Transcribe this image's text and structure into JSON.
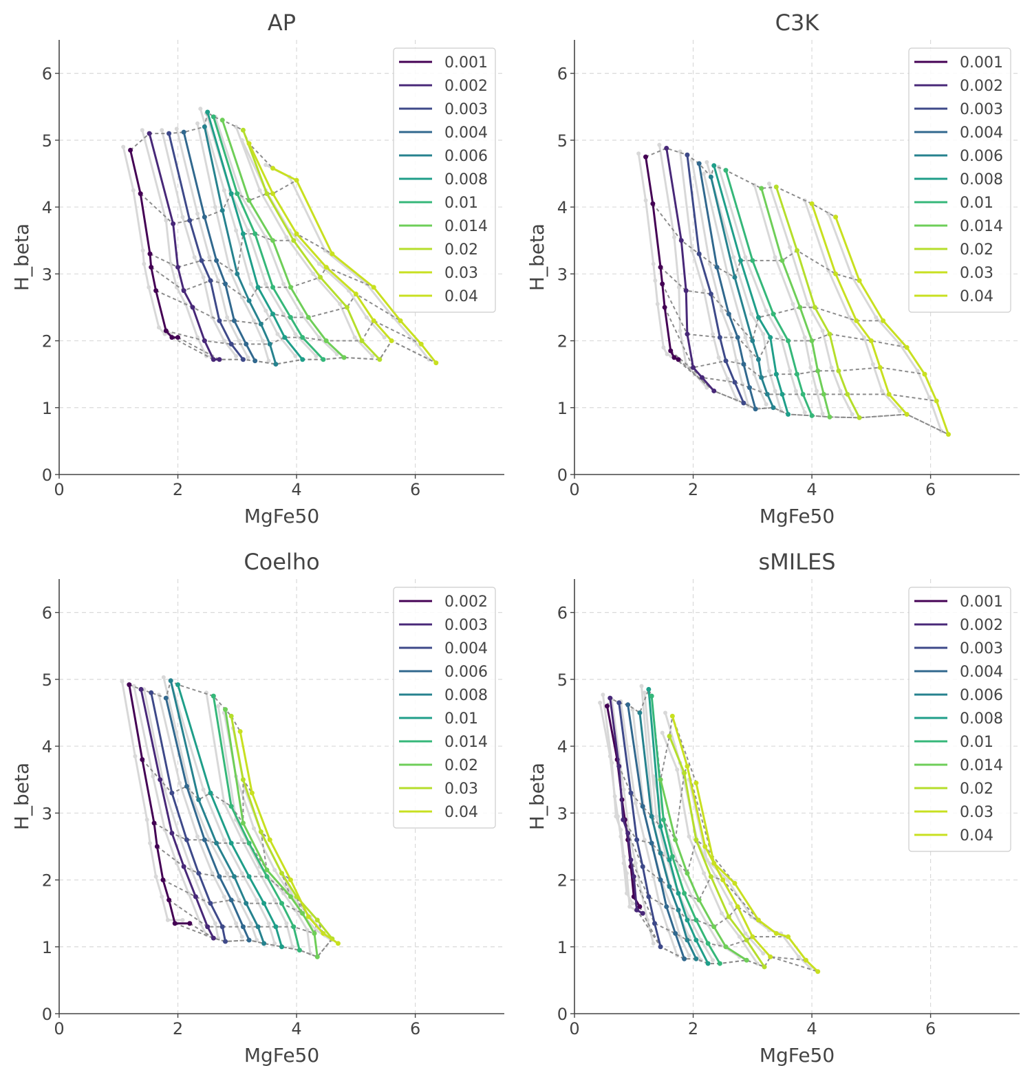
{
  "colors": {
    "axis": "#444444",
    "grid": "#d9d9d9",
    "ghost": "#d8d8d8",
    "iso": "#8c8c8c",
    "palette": [
      "#440154",
      "#482878",
      "#3e4989",
      "#31688e",
      "#26828e",
      "#1f9e89",
      "#35b779",
      "#6ece58",
      "#b5de2b",
      "#c8e020"
    ]
  },
  "chart_data": [
    {
      "type": "line",
      "title": "AP",
      "xlabel": "MgFe50",
      "ylabel": "H_beta",
      "xlim": [
        0,
        7.5
      ],
      "ylim": [
        0,
        6.5
      ],
      "xticks": [
        "0",
        "2",
        "4",
        "6"
      ],
      "yticks": [
        "0",
        "1",
        "2",
        "3",
        "4",
        "5",
        "6"
      ],
      "grid": true,
      "legend_position": "top-right",
      "series": [
        {
          "name": "0.001",
          "x": [
            1.2,
            1.37,
            1.53,
            1.55,
            1.63,
            1.8,
            1.9,
            2.0
          ],
          "y": [
            4.85,
            4.2,
            3.3,
            3.1,
            2.75,
            2.15,
            2.05,
            2.05
          ]
        },
        {
          "name": "0.002",
          "x": [
            1.52,
            1.92,
            2.0,
            2.1,
            2.25,
            2.45,
            2.6,
            2.7
          ],
          "y": [
            5.1,
            3.75,
            3.1,
            2.75,
            2.5,
            2.0,
            1.72,
            1.72
          ]
        },
        {
          "name": "0.003",
          "x": [
            1.85,
            2.2,
            2.4,
            2.55,
            2.7,
            2.9,
            3.1
          ],
          "y": [
            5.1,
            3.8,
            3.2,
            2.9,
            2.3,
            1.95,
            1.72
          ]
        },
        {
          "name": "0.004",
          "x": [
            2.1,
            2.45,
            2.65,
            2.8,
            2.95,
            3.15,
            3.3
          ],
          "y": [
            5.12,
            3.85,
            3.2,
            2.85,
            2.3,
            1.95,
            1.7
          ]
        },
        {
          "name": "0.006",
          "x": [
            2.45,
            2.75,
            3.0,
            3.2,
            3.4,
            3.55,
            3.65
          ],
          "y": [
            5.2,
            3.95,
            3.0,
            2.6,
            2.25,
            1.95,
            1.65
          ]
        },
        {
          "name": "0.008",
          "x": [
            2.5,
            2.9,
            3.1,
            3.35,
            3.6,
            3.8,
            4.1
          ],
          "y": [
            5.42,
            4.2,
            3.6,
            2.8,
            2.4,
            2.05,
            1.72
          ]
        },
        {
          "name": "0.01",
          "x": [
            2.6,
            3.0,
            3.3,
            3.6,
            3.9,
            4.1,
            4.45
          ],
          "y": [
            5.35,
            4.2,
            3.6,
            2.8,
            2.35,
            2.05,
            1.72
          ]
        },
        {
          "name": "0.014",
          "x": [
            2.75,
            3.2,
            3.6,
            3.9,
            4.2,
            4.5,
            4.8
          ],
          "y": [
            5.3,
            4.1,
            3.5,
            2.8,
            2.35,
            2.0,
            1.75
          ]
        },
        {
          "name": "0.02",
          "x": [
            3.1,
            3.5,
            3.95,
            4.4,
            4.85,
            5.1,
            5.4
          ],
          "y": [
            5.15,
            4.2,
            3.5,
            2.95,
            2.5,
            2.0,
            1.72
          ]
        },
        {
          "name": "0.03",
          "x": [
            3.2,
            3.6,
            4.0,
            4.5,
            5.0,
            5.3,
            5.6
          ],
          "y": [
            4.95,
            4.2,
            3.6,
            3.1,
            2.7,
            2.3,
            2.0
          ]
        },
        {
          "name": "0.04",
          "x": [
            3.6,
            4.0,
            4.6,
            5.3,
            5.75,
            6.1,
            6.35
          ],
          "y": [
            4.58,
            4.4,
            3.3,
            2.8,
            2.3,
            1.95,
            1.67
          ]
        }
      ]
    },
    {
      "type": "line",
      "title": "C3K",
      "xlabel": "MgFe50",
      "ylabel": "H_beta",
      "xlim": [
        0,
        7.5
      ],
      "ylim": [
        0,
        6.5
      ],
      "xticks": [
        "0",
        "2",
        "4",
        "6"
      ],
      "yticks": [
        "0",
        "1",
        "2",
        "3",
        "4",
        "5",
        "6"
      ],
      "grid": true,
      "legend_position": "top-right",
      "series": [
        {
          "name": "0.001",
          "x": [
            1.2,
            1.32,
            1.45,
            1.48,
            1.52,
            1.62,
            1.68,
            1.75
          ],
          "y": [
            4.75,
            4.05,
            3.1,
            2.85,
            2.5,
            1.85,
            1.75,
            1.72
          ]
        },
        {
          "name": "0.002",
          "x": [
            1.55,
            1.8,
            1.88,
            1.9,
            2.0,
            2.15,
            2.35
          ],
          "y": [
            4.88,
            3.5,
            2.75,
            2.1,
            1.6,
            1.45,
            1.25
          ]
        },
        {
          "name": "0.003",
          "x": [
            1.9,
            2.1,
            2.3,
            2.45,
            2.55,
            2.7,
            2.85
          ],
          "y": [
            4.78,
            3.3,
            2.7,
            2.05,
            1.7,
            1.38,
            1.07
          ]
        },
        {
          "name": "0.004",
          "x": [
            2.1,
            2.4,
            2.6,
            2.75,
            2.85,
            2.95,
            3.05
          ],
          "y": [
            4.65,
            3.1,
            2.4,
            2.05,
            1.65,
            1.3,
            0.98
          ]
        },
        {
          "name": "0.006",
          "x": [
            2.3,
            2.7,
            3.0,
            3.1,
            3.15,
            3.25,
            3.35
          ],
          "y": [
            4.45,
            2.95,
            2.0,
            1.72,
            1.45,
            1.2,
            1.0
          ]
        },
        {
          "name": "0.008",
          "x": [
            2.35,
            2.8,
            3.1,
            3.3,
            3.4,
            3.5,
            3.6
          ],
          "y": [
            4.62,
            3.2,
            2.35,
            2.05,
            1.5,
            1.2,
            0.9
          ]
        },
        {
          "name": "0.01",
          "x": [
            2.55,
            3.0,
            3.35,
            3.6,
            3.75,
            3.85,
            4.0
          ],
          "y": [
            4.55,
            3.2,
            2.4,
            2.0,
            1.5,
            1.2,
            0.88
          ]
        },
        {
          "name": "0.014",
          "x": [
            3.15,
            3.5,
            3.8,
            4.0,
            4.1,
            4.2,
            4.3
          ],
          "y": [
            4.28,
            3.2,
            2.5,
            2.0,
            1.55,
            1.2,
            0.86
          ]
        },
        {
          "name": "0.02",
          "x": [
            3.4,
            3.75,
            4.05,
            4.3,
            4.45,
            4.6,
            4.8
          ],
          "y": [
            4.3,
            3.35,
            2.5,
            2.1,
            1.55,
            1.2,
            0.85
          ]
        },
        {
          "name": "0.03",
          "x": [
            4.0,
            4.4,
            4.75,
            5.0,
            5.15,
            5.3,
            5.6
          ],
          "y": [
            4.05,
            3.0,
            2.3,
            2.0,
            1.6,
            1.2,
            0.9
          ]
        },
        {
          "name": "0.04",
          "x": [
            4.4,
            4.8,
            5.2,
            5.6,
            5.9,
            6.1,
            6.3
          ],
          "y": [
            3.85,
            2.9,
            2.3,
            1.9,
            1.5,
            1.1,
            0.6
          ]
        }
      ]
    },
    {
      "type": "line",
      "title": "Coelho",
      "xlabel": "MgFe50",
      "ylabel": "H_beta",
      "xlim": [
        0,
        7.5
      ],
      "ylim": [
        0,
        6.5
      ],
      "xticks": [
        "0",
        "2",
        "4",
        "6"
      ],
      "yticks": [
        "0",
        "1",
        "2",
        "3",
        "4",
        "5",
        "6"
      ],
      "grid": true,
      "legend_position": "top-right",
      "series": [
        {
          "name": "0.002",
          "x": [
            1.18,
            1.4,
            1.6,
            1.65,
            1.75,
            1.85,
            1.95,
            2.2
          ],
          "y": [
            4.92,
            3.8,
            2.85,
            2.5,
            2.0,
            1.7,
            1.35,
            1.35
          ]
        },
        {
          "name": "0.003",
          "x": [
            1.38,
            1.7,
            1.9,
            2.1,
            2.3,
            2.5,
            2.6
          ],
          "y": [
            4.85,
            3.5,
            2.7,
            2.2,
            1.75,
            1.3,
            1.13
          ]
        },
        {
          "name": "0.004",
          "x": [
            1.55,
            1.9,
            2.15,
            2.35,
            2.55,
            2.75,
            2.8
          ],
          "y": [
            4.8,
            3.3,
            2.6,
            2.1,
            1.65,
            1.3,
            1.08
          ]
        },
        {
          "name": "0.006",
          "x": [
            1.8,
            2.15,
            2.45,
            2.7,
            2.9,
            3.1,
            3.2
          ],
          "y": [
            4.72,
            3.4,
            2.6,
            2.05,
            1.7,
            1.3,
            1.1
          ]
        },
        {
          "name": "0.008",
          "x": [
            1.88,
            2.35,
            2.65,
            2.95,
            3.15,
            3.35,
            3.45
          ],
          "y": [
            4.98,
            3.2,
            2.55,
            2.05,
            1.65,
            1.3,
            1.05
          ]
        },
        {
          "name": "0.01",
          "x": [
            2.0,
            2.55,
            2.9,
            3.2,
            3.45,
            3.65,
            3.75
          ],
          "y": [
            4.92,
            3.3,
            2.55,
            2.05,
            1.65,
            1.3,
            1.0
          ]
        },
        {
          "name": "0.014",
          "x": [
            2.6,
            2.9,
            3.2,
            3.5,
            3.75,
            3.95,
            4.05
          ],
          "y": [
            4.75,
            3.1,
            2.55,
            2.05,
            1.65,
            1.3,
            0.95
          ]
        },
        {
          "name": "0.02",
          "x": [
            2.8,
            3.1,
            3.5,
            3.9,
            4.1,
            4.3,
            4.35
          ],
          "y": [
            4.55,
            2.85,
            2.15,
            1.75,
            1.5,
            1.2,
            0.85
          ]
        },
        {
          "name": "0.03",
          "x": [
            2.9,
            3.1,
            3.4,
            3.75,
            4.0,
            4.35,
            4.6
          ],
          "y": [
            4.45,
            3.5,
            2.72,
            2.1,
            1.75,
            1.4,
            1.12
          ]
        },
        {
          "name": "0.04",
          "x": [
            3.05,
            3.25,
            3.55,
            3.9,
            4.2,
            4.45,
            4.7
          ],
          "y": [
            4.22,
            3.3,
            2.6,
            2.0,
            1.45,
            1.2,
            1.05
          ]
        }
      ]
    },
    {
      "type": "line",
      "title": "sMILES",
      "xlabel": "MgFe50",
      "ylabel": "H_beta",
      "xlim": [
        0,
        7.5
      ],
      "ylim": [
        0,
        6.5
      ],
      "xticks": [
        "0",
        "2",
        "4",
        "6"
      ],
      "yticks": [
        "0",
        "1",
        "2",
        "3",
        "4",
        "5",
        "6"
      ],
      "grid": true,
      "legend_position": "top-right",
      "series": [
        {
          "name": "0.001",
          "x": [
            0.55,
            0.72,
            0.8,
            0.85,
            0.9,
            0.95,
            1.0,
            1.1
          ],
          "y": [
            4.6,
            3.8,
            3.2,
            2.9,
            2.6,
            2.2,
            1.75,
            1.6
          ]
        },
        {
          "name": "0.002",
          "x": [
            0.6,
            0.75,
            0.82,
            0.9,
            0.95,
            1.0,
            1.05,
            1.15
          ],
          "y": [
            4.72,
            3.7,
            2.9,
            2.7,
            2.3,
            2.05,
            1.55,
            1.5
          ]
        },
        {
          "name": "0.003",
          "x": [
            0.75,
            0.95,
            1.05,
            1.15,
            1.25,
            1.35,
            1.45
          ],
          "y": [
            4.65,
            3.3,
            2.6,
            2.2,
            1.75,
            1.35,
            1.0
          ]
        },
        {
          "name": "0.004",
          "x": [
            0.9,
            1.15,
            1.3,
            1.45,
            1.55,
            1.7,
            1.85
          ],
          "y": [
            4.62,
            3.1,
            2.55,
            2.0,
            1.6,
            1.2,
            0.82
          ]
        },
        {
          "name": "0.006",
          "x": [
            1.1,
            1.3,
            1.45,
            1.6,
            1.75,
            1.9,
            2.05
          ],
          "y": [
            4.5,
            2.95,
            2.4,
            1.9,
            1.55,
            1.1,
            0.82
          ]
        },
        {
          "name": "0.008",
          "x": [
            1.25,
            1.45,
            1.6,
            1.75,
            1.9,
            2.05,
            2.25
          ],
          "y": [
            4.85,
            2.8,
            2.3,
            1.8,
            1.4,
            1.1,
            0.75
          ]
        },
        {
          "name": "0.01",
          "x": [
            1.3,
            1.5,
            1.65,
            1.85,
            2.05,
            2.25,
            2.45
          ],
          "y": [
            4.75,
            2.9,
            2.35,
            1.8,
            1.4,
            1.05,
            0.75
          ]
        },
        {
          "name": "0.014",
          "x": [
            1.45,
            1.7,
            1.9,
            2.1,
            2.35,
            2.55,
            2.9
          ],
          "y": [
            3.5,
            2.6,
            2.1,
            1.7,
            1.3,
            1.0,
            0.8
          ]
        },
        {
          "name": "0.02",
          "x": [
            1.6,
            1.85,
            2.05,
            2.3,
            2.6,
            2.9,
            3.2
          ],
          "y": [
            4.15,
            3.6,
            2.6,
            2.05,
            1.45,
            1.1,
            0.7
          ]
        },
        {
          "name": "0.03",
          "x": [
            1.65,
            1.9,
            2.2,
            2.5,
            2.75,
            3.0,
            3.3
          ],
          "y": [
            4.45,
            3.7,
            2.5,
            2.0,
            1.6,
            1.15,
            0.85
          ]
        },
        {
          "name": "0.04",
          "x": [
            2.05,
            2.35,
            2.7,
            3.1,
            3.4,
            3.6,
            3.9,
            4.1
          ],
          "y": [
            3.45,
            2.25,
            1.95,
            1.4,
            1.2,
            1.15,
            0.8,
            0.63
          ]
        }
      ]
    }
  ]
}
